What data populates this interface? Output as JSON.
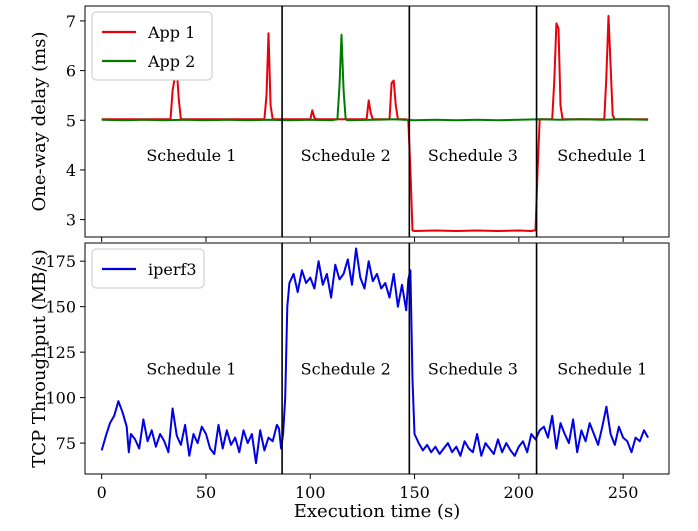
{
  "figure": {
    "xlabel": "Execution time (s)",
    "xticks": [
      0,
      50,
      100,
      150,
      200,
      250
    ],
    "xlim": [
      -8,
      272
    ]
  },
  "chart_data": [
    {
      "type": "line",
      "ylabel": "One-way delay (ms)",
      "xlabel": "",
      "ylim": [
        2.65,
        7.3
      ],
      "yticks": [
        3,
        4,
        5,
        6,
        7
      ],
      "legend_location": "top-left",
      "grid": false,
      "schedule_boundaries": [
        86.5,
        147.5,
        208.5
      ],
      "region_labels": [
        {
          "x": 43,
          "y": 4.3,
          "text": "Schedule 1"
        },
        {
          "x": 117,
          "y": 4.3,
          "text": "Schedule 2"
        },
        {
          "x": 178,
          "y": 4.3,
          "text": "Schedule 3"
        },
        {
          "x": 240,
          "y": 4.3,
          "text": "Schedule 1"
        }
      ],
      "series": [
        {
          "name": "App 1",
          "color": "#e8000b",
          "x": [
            0,
            33,
            34,
            35,
            36,
            37,
            38,
            78,
            79,
            80,
            81,
            82,
            100,
            101,
            102,
            103,
            127,
            128,
            129,
            130,
            138,
            139,
            140,
            141,
            142,
            146,
            147,
            148,
            149,
            150,
            160,
            170,
            180,
            190,
            200,
            206,
            207,
            208,
            209,
            210,
            216,
            217,
            218,
            219,
            220,
            221,
            241,
            242,
            243,
            244,
            245,
            246,
            262
          ],
          "y": [
            5.02,
            5.02,
            5.6,
            5.85,
            6.0,
            5.4,
            5.02,
            5.02,
            5.5,
            6.75,
            5.3,
            5.02,
            5.02,
            5.2,
            5.05,
            5.02,
            5.02,
            5.4,
            5.15,
            5.02,
            5.02,
            5.75,
            5.8,
            5.3,
            5.02,
            5.02,
            5.0,
            4.0,
            2.78,
            2.77,
            2.78,
            2.77,
            2.78,
            2.77,
            2.78,
            2.77,
            2.78,
            2.78,
            4.0,
            5.02,
            5.02,
            5.8,
            6.95,
            6.85,
            5.3,
            5.02,
            5.02,
            5.9,
            7.1,
            6.1,
            5.1,
            5.02,
            5.02
          ]
        },
        {
          "name": "App 2",
          "color": "#007b00",
          "x": [
            0,
            10,
            20,
            30,
            40,
            50,
            60,
            70,
            80,
            90,
            100,
            110,
            113,
            114,
            115,
            116,
            117,
            118,
            130,
            140,
            150,
            160,
            170,
            180,
            190,
            200,
            210,
            220,
            230,
            240,
            250,
            262
          ],
          "y": [
            5.01,
            5.0,
            5.01,
            5.0,
            5.01,
            5.0,
            5.01,
            5.0,
            5.01,
            5.0,
            5.01,
            5.0,
            5.02,
            5.7,
            6.72,
            5.6,
            5.02,
            5.0,
            5.01,
            5.02,
            5.0,
            5.01,
            5.0,
            5.01,
            5.0,
            5.01,
            5.02,
            5.01,
            5.02,
            5.01,
            5.02,
            5.01
          ]
        }
      ]
    },
    {
      "type": "line",
      "ylabel": "TCP Throughput (MB/s)",
      "xlabel": "Execution time (s)",
      "ylim": [
        58,
        185
      ],
      "yticks": [
        75,
        100,
        125,
        150,
        175
      ],
      "legend_location": "top-left",
      "grid": false,
      "schedule_boundaries": [
        86.5,
        147.5,
        208.5
      ],
      "region_labels": [
        {
          "x": 43,
          "y": 116,
          "text": "Schedule 1"
        },
        {
          "x": 117,
          "y": 116,
          "text": "Schedule 2"
        },
        {
          "x": 178,
          "y": 116,
          "text": "Schedule 3"
        },
        {
          "x": 240,
          "y": 116,
          "text": "Schedule 1"
        }
      ],
      "series": [
        {
          "name": "iperf3",
          "color": "#0000e6",
          "x": [
            0,
            2,
            4,
            6,
            8,
            10,
            12,
            13,
            14,
            16,
            18,
            20,
            22,
            24,
            26,
            28,
            30,
            32,
            34,
            36,
            38,
            40,
            42,
            44,
            46,
            48,
            50,
            52,
            54,
            56,
            58,
            60,
            62,
            64,
            66,
            68,
            70,
            72,
            74,
            76,
            78,
            80,
            82,
            84,
            85,
            86,
            87,
            88,
            89,
            90,
            92,
            94,
            96,
            98,
            100,
            102,
            104,
            106,
            108,
            110,
            112,
            114,
            116,
            118,
            120,
            122,
            124,
            126,
            128,
            130,
            132,
            134,
            136,
            138,
            140,
            142,
            144,
            146,
            147,
            148,
            149,
            150,
            152,
            154,
            156,
            158,
            160,
            162,
            164,
            166,
            168,
            170,
            172,
            174,
            176,
            178,
            180,
            182,
            184,
            186,
            188,
            190,
            192,
            194,
            196,
            198,
            200,
            202,
            204,
            206,
            208,
            210,
            212,
            214,
            216,
            218,
            220,
            222,
            224,
            226,
            228,
            230,
            232,
            234,
            236,
            238,
            240,
            242,
            244,
            246,
            248,
            250,
            252,
            254,
            256,
            258,
            260,
            262
          ],
          "y": [
            71,
            79,
            86,
            90,
            98,
            92,
            84,
            70,
            80,
            77,
            72,
            88,
            76,
            82,
            73,
            80,
            76,
            70,
            94,
            79,
            74,
            85,
            68,
            80,
            75,
            84,
            80,
            72,
            69,
            85,
            72,
            82,
            74,
            78,
            70,
            82,
            75,
            80,
            64,
            82,
            71,
            78,
            76,
            85,
            83,
            72,
            80,
            100,
            150,
            163,
            168,
            158,
            170,
            163,
            166,
            160,
            175,
            162,
            168,
            155,
            173,
            165,
            168,
            176,
            162,
            182,
            166,
            160,
            175,
            164,
            168,
            160,
            163,
            155,
            168,
            150,
            162,
            148,
            165,
            170,
            110,
            80,
            75,
            71,
            74,
            70,
            73,
            69,
            72,
            75,
            70,
            73,
            68,
            76,
            72,
            70,
            80,
            68,
            75,
            72,
            69,
            77,
            70,
            75,
            71,
            68,
            73,
            76,
            70,
            80,
            77,
            82,
            84,
            78,
            90,
            72,
            86,
            80,
            75,
            88,
            70,
            82,
            76,
            86,
            80,
            74,
            84,
            95,
            80,
            74,
            84,
            78,
            76,
            70,
            78,
            76,
            82,
            78
          ]
        }
      ]
    }
  ]
}
